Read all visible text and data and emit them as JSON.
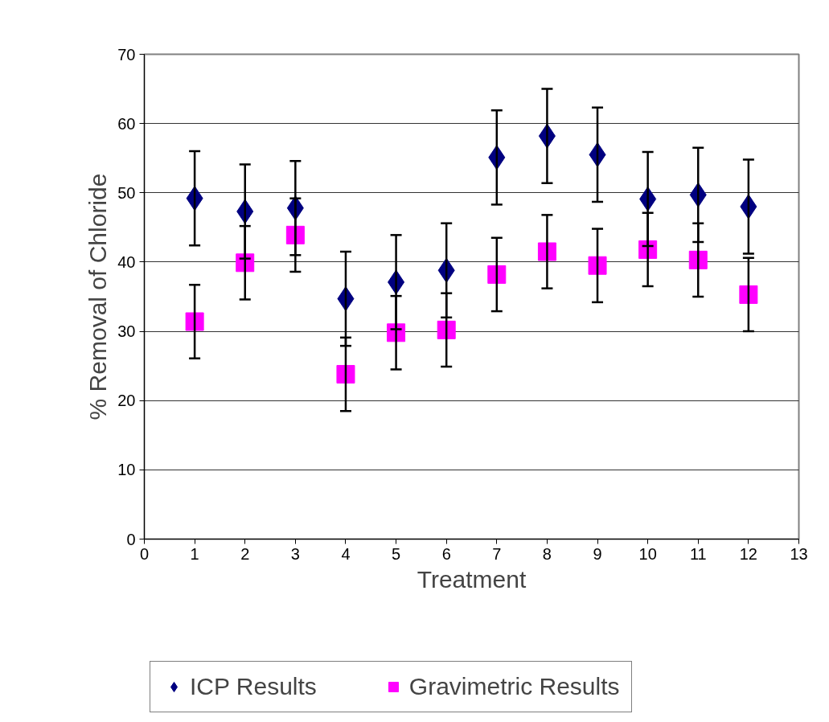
{
  "chart_data": {
    "type": "scatter",
    "xlabel": "Treatment",
    "ylabel": "% Removal of Chloride",
    "x": [
      1,
      2,
      3,
      4,
      5,
      6,
      7,
      8,
      9,
      10,
      11,
      12
    ],
    "series": [
      {
        "name": "ICP Results",
        "color": "#000080",
        "marker": "diamond",
        "values": [
          49.2,
          47.3,
          47.8,
          34.7,
          37.1,
          38.8,
          55.1,
          58.2,
          55.5,
          49.1,
          49.7,
          48.0
        ],
        "errors": [
          6.8,
          6.8,
          6.8,
          6.8,
          6.8,
          6.8,
          6.8,
          6.8,
          6.8,
          6.8,
          6.8,
          6.8
        ]
      },
      {
        "name": "Gravimetric Results",
        "color": "#ff00ff",
        "marker": "square",
        "values": [
          31.4,
          39.9,
          43.9,
          23.8,
          29.8,
          30.2,
          38.2,
          41.5,
          39.5,
          41.8,
          40.3,
          35.3
        ],
        "errors": [
          5.3,
          5.3,
          5.3,
          5.3,
          5.3,
          5.3,
          5.3,
          5.3,
          5.3,
          5.3,
          5.3,
          5.3
        ]
      }
    ],
    "xlim": [
      0,
      13
    ],
    "xticks": [
      0,
      1,
      2,
      3,
      4,
      5,
      6,
      7,
      8,
      9,
      10,
      11,
      12,
      13
    ],
    "ylim": [
      0,
      70
    ],
    "yticks": [
      0,
      10,
      20,
      30,
      40,
      50,
      60,
      70
    ],
    "grid": "y",
    "legend": "bottom"
  }
}
